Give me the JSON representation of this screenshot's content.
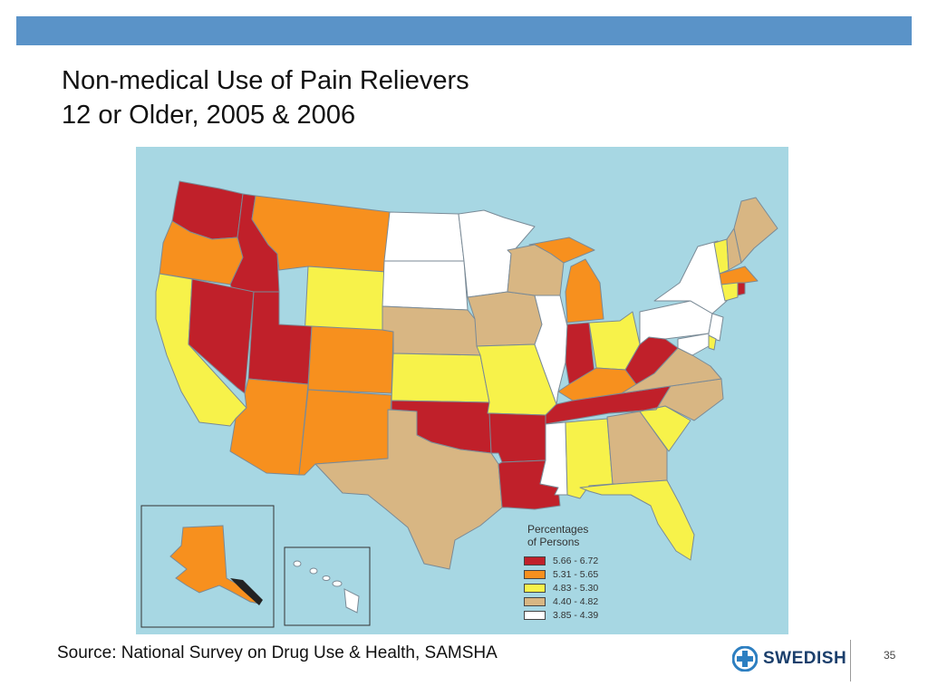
{
  "slide": {
    "title_line1": "Non-medical Use of Pain Relievers",
    "title_line2": "12 or Older, 2005 & 2006",
    "source": "Source: National Survey on Drug Use & Health, SAMSHA",
    "logo_text": "SWEDISH",
    "page_number": "35"
  },
  "map": {
    "legend": {
      "title_line1": "Percentages",
      "title_line2": "of Persons",
      "items": [
        {
          "label": "5.66 - 6.72",
          "color": "#c0202a"
        },
        {
          "label": "5.31 - 5.65",
          "color": "#f7901e"
        },
        {
          "label": "4.83 - 5.30",
          "color": "#f7f24a"
        },
        {
          "label": "4.40 - 4.82",
          "color": "#d8b683"
        },
        {
          "label": "3.85 - 4.39",
          "color": "#ffffff"
        }
      ]
    },
    "colors": {
      "water": "#a7d7e3",
      "border": "#7a8a96",
      "top_bar": "#5a93c8"
    }
  }
}
